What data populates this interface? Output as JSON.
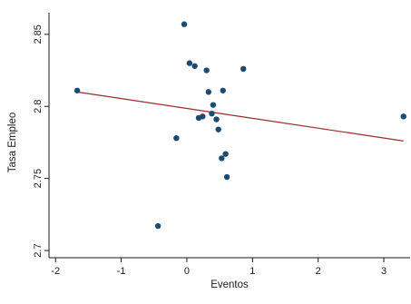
{
  "chart_data": {
    "type": "scatter",
    "title": "",
    "xlabel": "Eventos",
    "ylabel": "Tasa Empleo",
    "xlim": [
      -2.1,
      3.4
    ],
    "ylim": [
      2.695,
      2.865
    ],
    "xticks": [
      -2,
      -1,
      0,
      1,
      2,
      3
    ],
    "xtick_labels": [
      "-2",
      "-1",
      "0",
      "1",
      "2",
      "3"
    ],
    "yticks": [
      2.7,
      2.75,
      2.8,
      2.85
    ],
    "ytick_labels": [
      "2.7",
      "2.75",
      "2.8",
      "2.85"
    ],
    "grid": false,
    "legend": "none",
    "points": [
      {
        "x": -1.67,
        "y": 2.811
      },
      {
        "x": -0.44,
        "y": 2.717
      },
      {
        "x": -0.16,
        "y": 2.778
      },
      {
        "x": -0.04,
        "y": 2.857
      },
      {
        "x": 0.04,
        "y": 2.83
      },
      {
        "x": 0.12,
        "y": 2.828
      },
      {
        "x": 0.18,
        "y": 2.792
      },
      {
        "x": 0.24,
        "y": 2.793
      },
      {
        "x": 0.3,
        "y": 2.825
      },
      {
        "x": 0.33,
        "y": 2.81
      },
      {
        "x": 0.38,
        "y": 2.795
      },
      {
        "x": 0.4,
        "y": 2.801
      },
      {
        "x": 0.45,
        "y": 2.791
      },
      {
        "x": 0.48,
        "y": 2.784
      },
      {
        "x": 0.53,
        "y": 2.764
      },
      {
        "x": 0.55,
        "y": 2.811
      },
      {
        "x": 0.59,
        "y": 2.767
      },
      {
        "x": 0.61,
        "y": 2.751
      },
      {
        "x": 0.86,
        "y": 2.826
      },
      {
        "x": 3.3,
        "y": 2.793
      }
    ],
    "fit_line": {
      "x": [
        -1.67,
        3.3
      ],
      "y": [
        2.81,
        2.776
      ]
    },
    "colors": {
      "points": "#1b4b72",
      "fit_line": "#9b2b2b",
      "axis": "#1a1a1a"
    }
  }
}
